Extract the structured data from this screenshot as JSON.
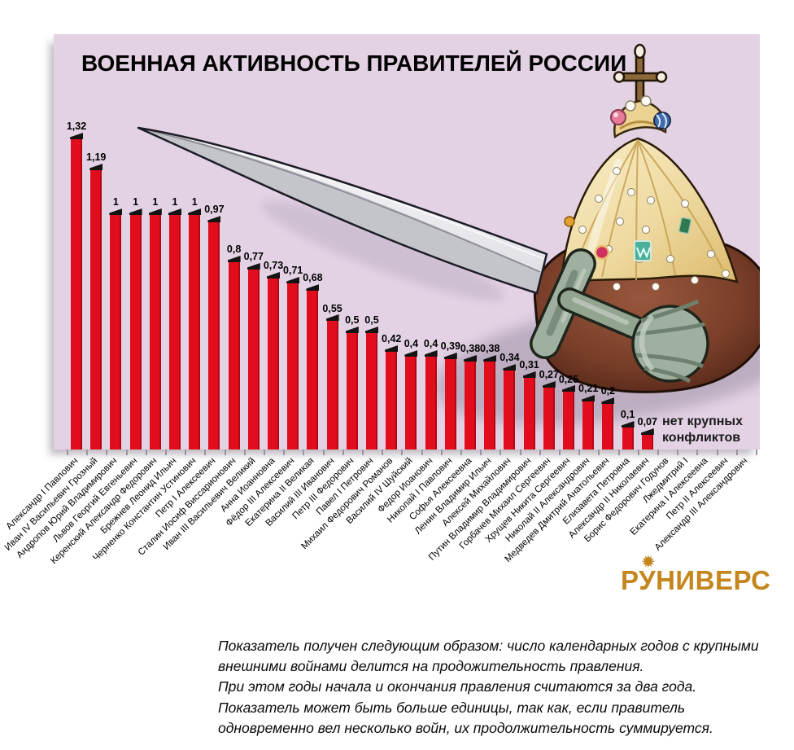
{
  "chart_data": {
    "type": "bar",
    "title": "ВОЕННАЯ АКТИВНОСТЬ ПРАВИТЕЛЕЙ РОССИИ",
    "xlabel": "",
    "ylabel": "",
    "ylim": [
      0,
      1.4
    ],
    "grid": false,
    "legend": false,
    "bar_color": "#e20d1c",
    "background_color": "#e3d2e4",
    "no_conflicts_note": "нет крупных\nконфликтов",
    "categories": [
      "Александр I Павлович",
      "Иван IV Васильевич Грозный",
      "Андропов Юрий Владимирович",
      "Львов  Георгий Евгеньевич",
      "Керенский Александр Федорович",
      "Брежнев Леонид Ильич",
      "Черненко Константин Устинович",
      "Петр I Алексеевич",
      "Сталин Иосиф Виссарионович",
      "Иван III Васильевич Великий",
      "Анна Иоанновна",
      "Фёдор III Алексеевич",
      "Екатерина II Великая",
      "Василий III Иванович",
      "Петр III Федорович",
      "Павел I Петрович",
      "Михаил Федорович Романов",
      "Василий IV Шуйский",
      "Федор Иоанович",
      "Николай I Павлович",
      "Софья Алексеевна",
      "Ленин Владимир Ильич",
      "Алексей Михайлович",
      "Путин Владимир Владимирович",
      "Горбачев Михаил Сергеевич",
      "Хрущев Никита Сергеевич",
      "Николай II Александрович",
      "Медведев Дмитрий Анатольевич",
      "Елизавета Петровна",
      "Александр II Николаевич",
      "Борис Федорович Годунов",
      "Лжедмитрий I",
      "Екатерина I Алексеевна",
      "Петр II Алексеевич",
      "Александр III Александрович"
    ],
    "values": [
      1.32,
      1.19,
      1,
      1,
      1,
      1,
      1,
      0.97,
      0.8,
      0.77,
      0.73,
      0.71,
      0.68,
      0.55,
      0.5,
      0.5,
      0.42,
      0.4,
      0.4,
      0.39,
      0.38,
      0.38,
      0.34,
      0.31,
      0.27,
      0.25,
      0.21,
      0.2,
      0.1,
      0.07,
      null,
      null,
      null,
      null,
      null
    ],
    "value_labels": [
      "1,32",
      "1,19",
      "1",
      "1",
      "1",
      "1",
      "1",
      "0,97",
      "0,8",
      "0,77",
      "0,73",
      "0,71",
      "0,68",
      "0,55",
      "0,5",
      "0,5",
      "0,42",
      "0,4",
      "0,4",
      "0,39",
      "0,38",
      "0,38",
      "0,34",
      "0,31",
      "0,27",
      "0,25",
      "0,21",
      "0,2",
      "0,1",
      "0,07",
      "",
      "",
      "",
      "",
      ""
    ]
  },
  "logo": {
    "text": "РУНИВЕРС",
    "star_glyph": "✹",
    "color": "#c5861d"
  },
  "footnote": {
    "text": "Показатель получен следующим образом: число календарных годов с крупными\nвнешними войнами делится на продожительность правления.\nПри этом годы начала и окончания правления считаются за два года.\nПоказатель может быть больше единицы, так как, если правитель\nодновременно вел несколько войн, их продолжительность суммируется."
  }
}
